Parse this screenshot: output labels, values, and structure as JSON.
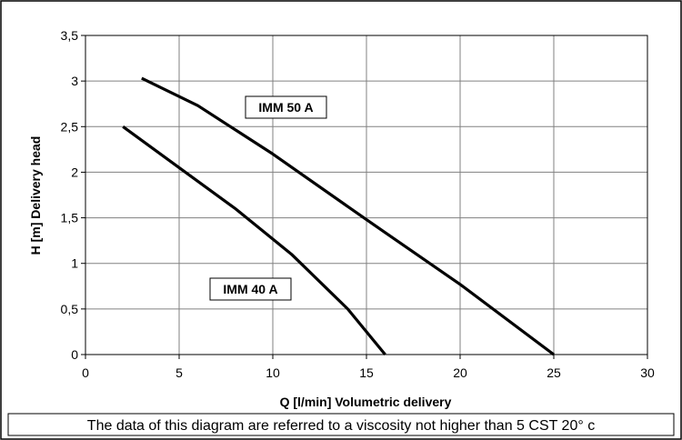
{
  "chart_data": {
    "type": "line",
    "xlabel": "Q [l/min] Volumetric delivery",
    "ylabel": "H [m] Delivery head",
    "xlim": [
      0,
      30
    ],
    "ylim": [
      0,
      3.5
    ],
    "x_ticks": [
      "0",
      "5",
      "10",
      "15",
      "20",
      "25",
      "30"
    ],
    "y_ticks": [
      "0",
      "0,5",
      "1",
      "1,5",
      "2",
      "2,5",
      "3",
      "3,5"
    ],
    "grid": true,
    "series": [
      {
        "name": "IMM 50 A",
        "x": [
          3,
          6,
          10,
          15,
          20,
          25
        ],
        "y": [
          3.03,
          2.73,
          2.2,
          1.48,
          0.77,
          0.0
        ]
      },
      {
        "name": "IMM 40 A",
        "x": [
          2,
          5,
          8,
          11,
          14,
          16
        ],
        "y": [
          2.5,
          2.05,
          1.6,
          1.1,
          0.5,
          0.0
        ]
      }
    ],
    "footnote": "The data of this diagram are referred to a viscosity not higher than 5 CST 20° c"
  },
  "colors": {
    "grid": "#808080",
    "series": "#000000",
    "background": "#ffffff"
  }
}
